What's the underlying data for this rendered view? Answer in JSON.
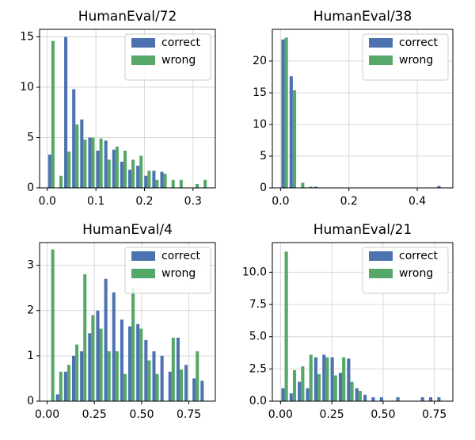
{
  "chart_data": [
    {
      "type": "histogram",
      "title": "HumanEval/72",
      "bins": [
        0,
        0.0165,
        0.033,
        0.0495,
        0.066,
        0.0825,
        0.099,
        0.1155,
        0.132,
        0.1485,
        0.165,
        0.1815,
        0.198,
        0.2145,
        0.231,
        0.2475,
        0.264,
        0.2805,
        0.297,
        0.3135,
        0.33
      ],
      "series": [
        {
          "name": "correct",
          "color": "#4c72b0",
          "values": [
            3.3,
            0,
            15,
            9.8,
            6.8,
            5.0,
            3.7,
            4.7,
            3.8,
            2.6,
            1.8,
            2.2,
            1.2,
            1.7,
            1.6,
            0,
            0,
            0,
            0,
            0
          ]
        },
        {
          "name": "wrong",
          "color": "#55a868",
          "values": [
            14.6,
            1.2,
            3.6,
            6.3,
            4.8,
            5.0,
            4.9,
            2.8,
            4.1,
            3.7,
            2.8,
            3.2,
            1.7,
            0.8,
            1.4,
            0.8,
            0.8,
            0,
            0.4,
            0.8
          ]
        }
      ],
      "xlim": [
        -0.016,
        0.346
      ],
      "ylim": [
        0,
        15.75
      ],
      "xticks": [
        {
          "value": 0,
          "label": "0.0"
        },
        0.1,
        0.2,
        0.3
      ],
      "yticks": [
        0,
        5,
        10,
        15
      ],
      "grid": true,
      "legend": "upper right"
    },
    {
      "type": "histogram",
      "title": "HumanEval/38",
      "bins": [
        0,
        0.024,
        0.048,
        0.072,
        0.096,
        0.12,
        0.144,
        0.168,
        0.192,
        0.216,
        0.24,
        0.264,
        0.288,
        0.312,
        0.336,
        0.36,
        0.384,
        0.408,
        0.432,
        0.456,
        0.48
      ],
      "series": [
        {
          "name": "correct",
          "color": "#4c72b0",
          "values": [
            23.4,
            17.6,
            0,
            0,
            0.2,
            0,
            0,
            0,
            0,
            0,
            0,
            0,
            0,
            0,
            0,
            0,
            0,
            0,
            0,
            0.3
          ]
        },
        {
          "name": "wrong",
          "color": "#55a868",
          "values": [
            23.7,
            15.4,
            0.8,
            0.2,
            0,
            0,
            0,
            0,
            0,
            0,
            0,
            0,
            0,
            0,
            0,
            0,
            0,
            0,
            0,
            0
          ]
        }
      ],
      "xlim": [
        -0.024,
        0.504
      ],
      "ylim": [
        0,
        25
      ],
      "xticks": [
        {
          "value": 0,
          "label": "0.0"
        },
        0.2,
        0.4
      ],
      "yticks": [
        0,
        5,
        10,
        15,
        20
      ],
      "grid": true,
      "legend": "upper right"
    },
    {
      "type": "histogram",
      "title": "HumanEval/4",
      "bins": [
        0,
        0.0425,
        0.085,
        0.1275,
        0.17,
        0.2125,
        0.255,
        0.2975,
        0.34,
        0.3825,
        0.425,
        0.4675,
        0.51,
        0.5525,
        0.595,
        0.6375,
        0.68,
        0.7225,
        0.765,
        0.8075,
        0.85
      ],
      "series": [
        {
          "name": "correct",
          "color": "#4c72b0",
          "values": [
            0,
            0.15,
            0.65,
            1.0,
            1.1,
            1.5,
            2.0,
            2.7,
            2.4,
            1.8,
            1.65,
            1.7,
            1.35,
            1.1,
            1.0,
            0.65,
            1.4,
            0.8,
            0.5,
            0.45
          ]
        },
        {
          "name": "wrong",
          "color": "#55a868",
          "values": [
            3.35,
            0.65,
            0.8,
            1.25,
            2.8,
            1.9,
            1.6,
            1.1,
            1.1,
            0.6,
            2.5,
            1.6,
            0.9,
            0.6,
            0,
            1.4,
            0.7,
            0,
            1.1,
            0
          ]
        }
      ],
      "xlim": [
        -0.04,
        0.89
      ],
      "ylim": [
        0,
        3.5
      ],
      "xticks": [
        {
          "value": 0,
          "label": "0.00"
        },
        0.25,
        {
          "value": 0.5,
          "label": "0.50"
        },
        0.75
      ],
      "yticks": [
        0,
        1,
        2,
        3
      ],
      "grid": true,
      "legend": "upper right"
    },
    {
      "type": "histogram",
      "title": "HumanEval/21",
      "bins": [
        0,
        0.04,
        0.08,
        0.12,
        0.16,
        0.2,
        0.24,
        0.28,
        0.32,
        0.36,
        0.4,
        0.44,
        0.48,
        0.52,
        0.56,
        0.6,
        0.64,
        0.68,
        0.72,
        0.76,
        0.8
      ],
      "series": [
        {
          "name": "correct",
          "color": "#4c72b0",
          "values": [
            1.0,
            0.6,
            1.5,
            1.0,
            3.4,
            3.6,
            3.4,
            2.2,
            3.3,
            1.0,
            0.5,
            0.3,
            0.3,
            0,
            0.3,
            0,
            0,
            0.3,
            0.3,
            0.3
          ]
        },
        {
          "name": "wrong",
          "color": "#55a868",
          "values": [
            11.6,
            2.4,
            2.7,
            3.6,
            2.1,
            3.4,
            2.0,
            3.4,
            1.5,
            0.8,
            0,
            0,
            0,
            0,
            0,
            0,
            0,
            0,
            0,
            0
          ]
        }
      ],
      "xlim": [
        -0.04,
        0.84
      ],
      "ylim": [
        0,
        12.3
      ],
      "xticks": [
        {
          "value": 0,
          "label": "0.00"
        },
        0.25,
        {
          "value": 0.5,
          "label": "0.50"
        },
        0.75
      ],
      "yticks": [
        {
          "value": 0,
          "label": "0.0"
        },
        2.5,
        {
          "value": 5,
          "label": "5.0"
        },
        7.5,
        {
          "value": 10,
          "label": "10.0"
        }
      ],
      "grid": true,
      "legend": "upper right"
    }
  ]
}
